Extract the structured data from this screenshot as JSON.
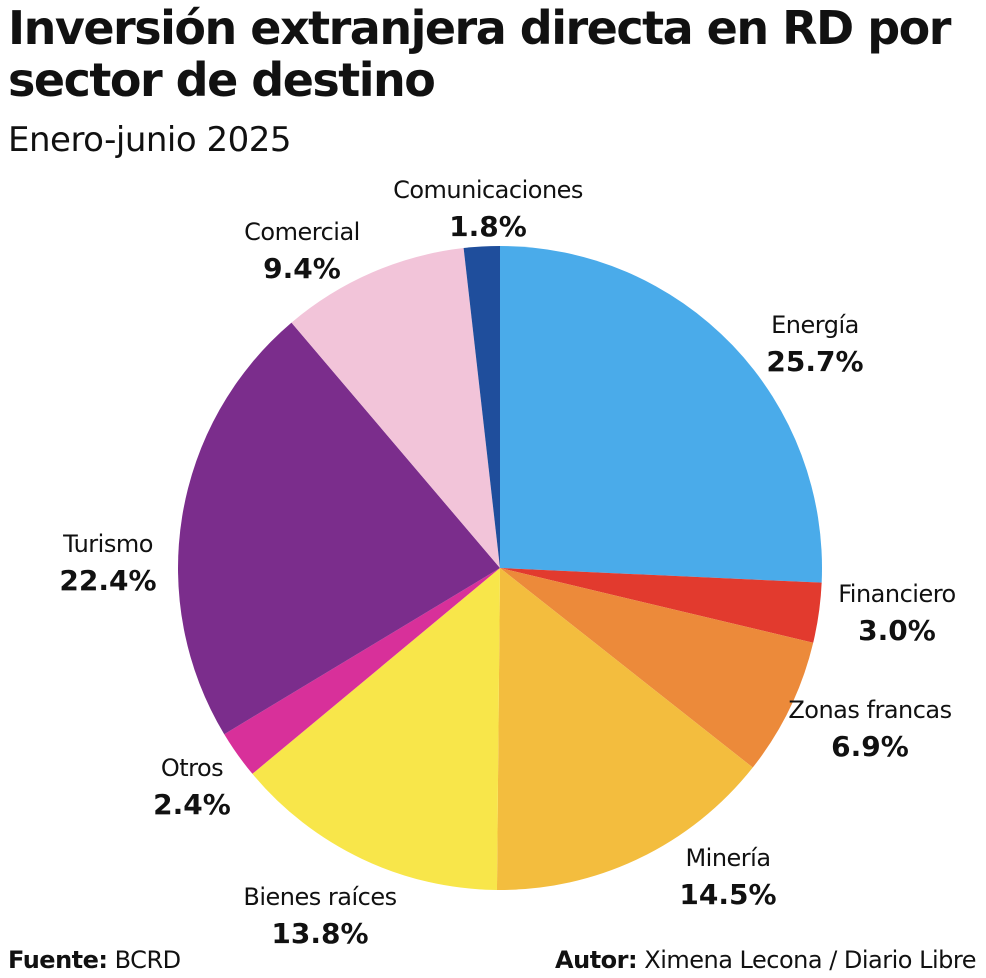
{
  "title": "Inversión extranjera directa en RD por sector de destino",
  "subtitle": "Enero-junio 2025",
  "chart_data": {
    "type": "pie",
    "title": "Inversión extranjera directa en RD por sector de destino",
    "subtitle": "Enero-junio 2025",
    "unit": "%",
    "slices": [
      {
        "label": "Energía",
        "value": 25.7,
        "display": "25.7%",
        "color": "#4AABEA"
      },
      {
        "label": "Financiero",
        "value": 3.0,
        "display": "3.0%",
        "color": "#E23A2E"
      },
      {
        "label": "Zonas francas",
        "value": 6.9,
        "display": "6.9%",
        "color": "#EC8A3A"
      },
      {
        "label": "Minería",
        "value": 14.5,
        "display": "14.5%",
        "color": "#F3BD3E"
      },
      {
        "label": "Bienes raíces",
        "value": 13.8,
        "display": "13.8%",
        "color": "#F8E64A"
      },
      {
        "label": "Otros",
        "value": 2.4,
        "display": "2.4%",
        "color": "#D8309A"
      },
      {
        "label": "Turismo",
        "value": 22.4,
        "display": "22.4%",
        "color": "#7B2D8C"
      },
      {
        "label": "Comercial",
        "value": 9.4,
        "display": "9.4%",
        "color": "#F2C4D9"
      },
      {
        "label": "Comunicaciones",
        "value": 1.8,
        "display": "1.8%",
        "color": "#1F4E9C"
      }
    ],
    "start_angle": "12 o'clock",
    "direction": "clockwise"
  },
  "footer": {
    "source_label": "Fuente:",
    "source_value": "BCRD",
    "author_label": "Autor:",
    "author_value": "Ximena Lecona / Diario Libre"
  }
}
